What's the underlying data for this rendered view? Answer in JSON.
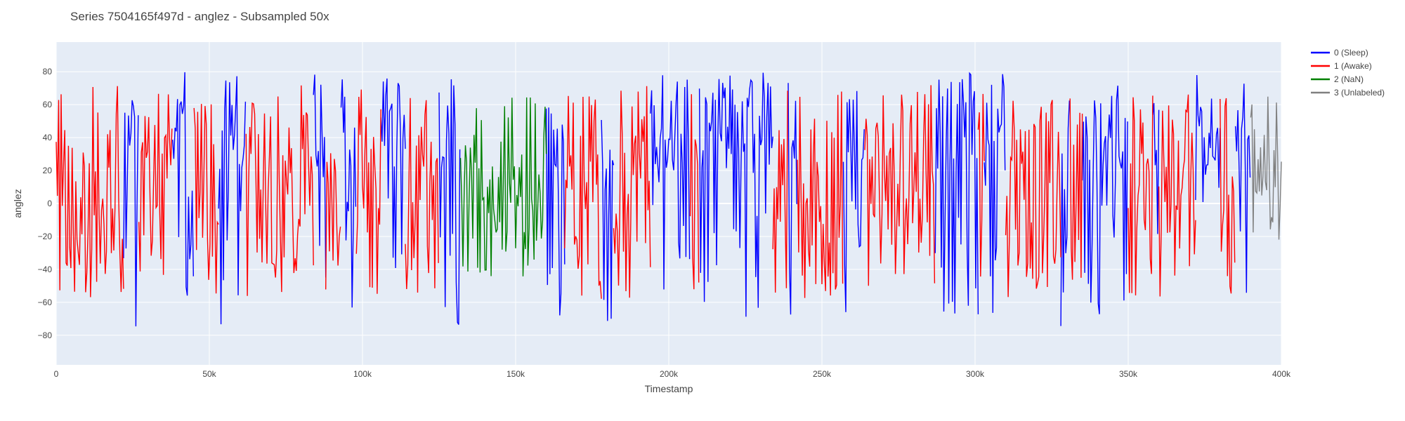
{
  "chart_data": {
    "type": "line",
    "title": "Series 7504165f497d - anglez - Subsampled 50x",
    "xlabel": "Timestamp",
    "ylabel": "anglez",
    "xlim": [
      0,
      400000
    ],
    "ylim": [
      -98,
      98
    ],
    "x_ticks": [
      0,
      50000,
      100000,
      150000,
      200000,
      250000,
      300000,
      350000,
      400000
    ],
    "x_tick_labels": [
      "0",
      "50k",
      "100k",
      "150k",
      "200k",
      "250k",
      "300k",
      "350k",
      "400k"
    ],
    "y_ticks": [
      -80,
      -60,
      -40,
      -20,
      0,
      20,
      40,
      60,
      80
    ],
    "y_tick_labels": [
      "−80",
      "−60",
      "−40",
      "−20",
      "0",
      "20",
      "40",
      "60",
      "80"
    ],
    "grid": true,
    "legend_position": "top-right outside",
    "background_color": "#e5ecf6",
    "series": [
      {
        "name": "0 (Sleep)",
        "color": "#0000ff",
        "segments": [
          [
            22000,
            27000
          ],
          [
            38000,
            45000
          ],
          [
            53000,
            62000
          ],
          [
            84000,
            88000
          ],
          [
            93000,
            98000
          ],
          [
            106000,
            114000
          ],
          [
            125000,
            132000
          ],
          [
            160000,
            166000
          ],
          [
            178000,
            182000
          ],
          [
            194000,
            207000
          ],
          [
            210000,
            234000
          ],
          [
            239000,
            242000
          ],
          [
            257000,
            264000
          ],
          [
            287000,
            301000
          ],
          [
            303000,
            310000
          ],
          [
            328000,
            331000
          ],
          [
            335000,
            350000
          ],
          [
            358000,
            360000
          ],
          [
            372000,
            380000
          ],
          [
            385000,
            390000
          ]
        ]
      },
      {
        "name": "1 (Awake)",
        "color": "#ff0000",
        "segments": [
          [
            0,
            22000
          ],
          [
            27000,
            38000
          ],
          [
            45000,
            53000
          ],
          [
            62000,
            84000
          ],
          [
            88000,
            93000
          ],
          [
            98000,
            106000
          ],
          [
            114000,
            125000
          ],
          [
            166000,
            178000
          ],
          [
            182000,
            194000
          ],
          [
            207000,
            210000
          ],
          [
            234000,
            239000
          ],
          [
            242000,
            257000
          ],
          [
            264000,
            287000
          ],
          [
            301000,
            303000
          ],
          [
            310000,
            328000
          ],
          [
            331000,
            335000
          ],
          [
            350000,
            358000
          ],
          [
            360000,
            372000
          ],
          [
            380000,
            385000
          ]
        ]
      },
      {
        "name": "2 (NaN)",
        "color": "#008000",
        "segments": [
          [
            132000,
            160000
          ]
        ]
      },
      {
        "name": "3 (Unlabeled)",
        "color": "#808080",
        "segments": [
          [
            390000,
            400000
          ]
        ]
      }
    ]
  }
}
